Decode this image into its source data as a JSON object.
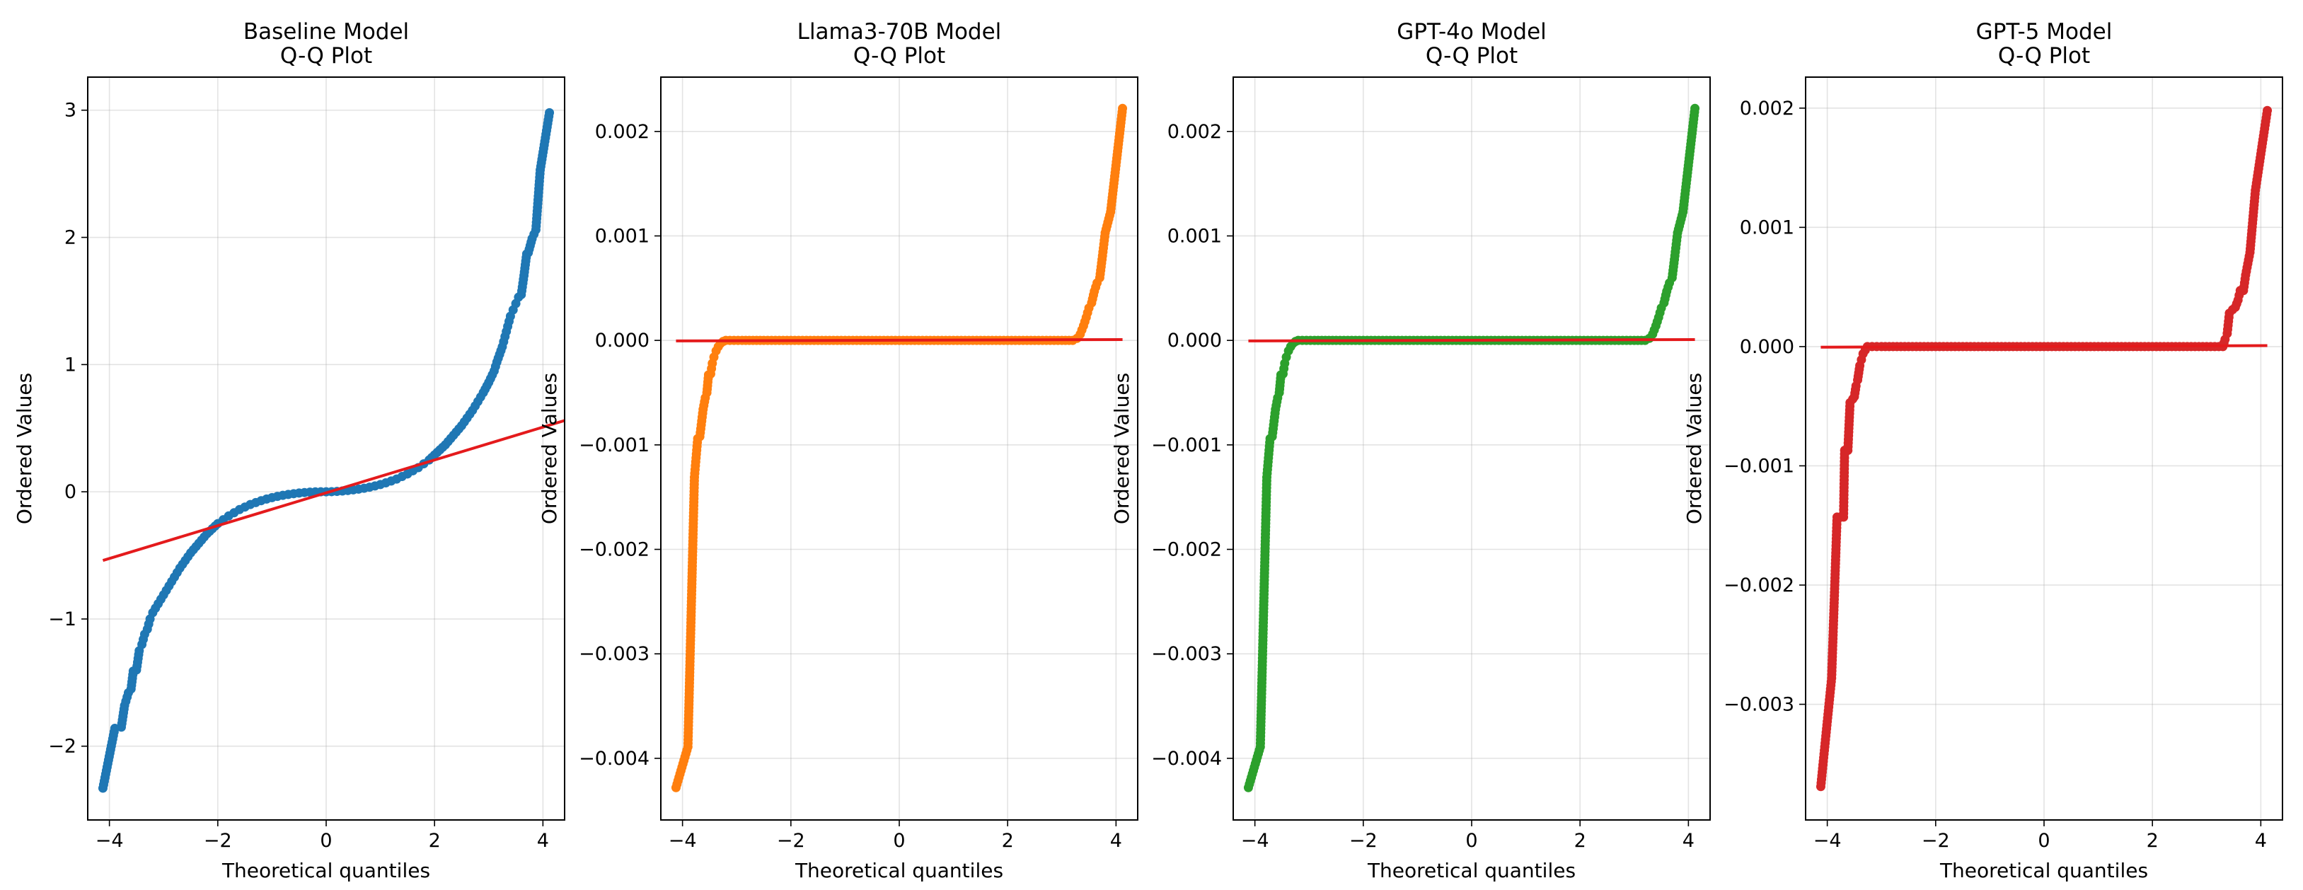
{
  "chart_data": [
    {
      "type": "scatter",
      "title_lines": [
        "Baseline Model",
        "Q-Q Plot"
      ],
      "xlabel": "Theoretical quantiles",
      "ylabel": "Ordered Values",
      "xlim": [
        -4.4,
        4.4
      ],
      "ylim": [
        -2.58,
        3.26
      ],
      "xticks": [
        -4,
        -2,
        0,
        2,
        4
      ],
      "xtick_labels": [
        "−4",
        "−2",
        "0",
        "2",
        "4"
      ],
      "yticks": [
        -2,
        -1,
        0,
        1,
        2,
        3
      ],
      "ytick_labels": [
        "−2",
        "−1",
        "0",
        "1",
        "2",
        "3"
      ],
      "grid": true,
      "point_color": "#1f77b4",
      "line_color": "#e41a1c",
      "fit_line": {
        "x": [
          -4.12,
          4.4
        ],
        "y": [
          -0.54,
          0.56
        ]
      },
      "points": [
        [
          -4.12,
          -2.33
        ],
        [
          -3.9,
          -1.86
        ],
        [
          -3.78,
          -1.85
        ],
        [
          -3.72,
          -1.68
        ],
        [
          -3.65,
          -1.58
        ],
        [
          -3.6,
          -1.55
        ],
        [
          -3.56,
          -1.41
        ],
        [
          -3.5,
          -1.4
        ],
        [
          -3.45,
          -1.25
        ],
        [
          -3.4,
          -1.2
        ],
        [
          -3.35,
          -1.12
        ],
        [
          -3.3,
          -1.08
        ],
        [
          -3.25,
          -1.0
        ],
        [
          -3.2,
          -0.95
        ],
        [
          -3.1,
          -0.88
        ],
        [
          -3.0,
          -0.81
        ],
        [
          -2.9,
          -0.74
        ],
        [
          -2.8,
          -0.67
        ],
        [
          -2.7,
          -0.6
        ],
        [
          -2.6,
          -0.54
        ],
        [
          -2.5,
          -0.48
        ],
        [
          -2.4,
          -0.43
        ],
        [
          -2.3,
          -0.38
        ],
        [
          -2.2,
          -0.33
        ],
        [
          -2.1,
          -0.29
        ],
        [
          -2.0,
          -0.25
        ],
        [
          -1.9,
          -0.22
        ],
        [
          -1.8,
          -0.19
        ],
        [
          -1.7,
          -0.165
        ],
        [
          -1.6,
          -0.14
        ],
        [
          -1.5,
          -0.12
        ],
        [
          -1.4,
          -0.1
        ],
        [
          -1.3,
          -0.085
        ],
        [
          -1.2,
          -0.07
        ],
        [
          -1.1,
          -0.057
        ],
        [
          -1.0,
          -0.046
        ],
        [
          -0.9,
          -0.036
        ],
        [
          -0.8,
          -0.028
        ],
        [
          -0.7,
          -0.021
        ],
        [
          -0.6,
          -0.015
        ],
        [
          -0.5,
          -0.01
        ],
        [
          -0.4,
          -0.006
        ],
        [
          -0.3,
          -0.003
        ],
        [
          -0.2,
          -0.001
        ],
        [
          -0.1,
          0.0
        ],
        [
          0.0,
          0.0
        ],
        [
          0.1,
          0.001
        ],
        [
          0.2,
          0.003
        ],
        [
          0.3,
          0.006
        ],
        [
          0.4,
          0.01
        ],
        [
          0.5,
          0.015
        ],
        [
          0.6,
          0.021
        ],
        [
          0.7,
          0.028
        ],
        [
          0.8,
          0.036
        ],
        [
          0.9,
          0.046
        ],
        [
          1.0,
          0.057
        ],
        [
          1.1,
          0.07
        ],
        [
          1.2,
          0.085
        ],
        [
          1.3,
          0.1
        ],
        [
          1.4,
          0.12
        ],
        [
          1.5,
          0.14
        ],
        [
          1.6,
          0.165
        ],
        [
          1.7,
          0.19
        ],
        [
          1.8,
          0.22
        ],
        [
          1.9,
          0.25
        ],
        [
          2.0,
          0.29
        ],
        [
          2.1,
          0.33
        ],
        [
          2.2,
          0.37
        ],
        [
          2.3,
          0.42
        ],
        [
          2.4,
          0.47
        ],
        [
          2.5,
          0.52
        ],
        [
          2.6,
          0.58
        ],
        [
          2.7,
          0.64
        ],
        [
          2.8,
          0.71
        ],
        [
          2.9,
          0.78
        ],
        [
          3.0,
          0.86
        ],
        [
          3.1,
          0.95
        ],
        [
          3.15,
          1.02
        ],
        [
          3.2,
          1.08
        ],
        [
          3.25,
          1.14
        ],
        [
          3.3,
          1.22
        ],
        [
          3.35,
          1.3
        ],
        [
          3.4,
          1.38
        ],
        [
          3.45,
          1.43
        ],
        [
          3.5,
          1.48
        ],
        [
          3.55,
          1.53
        ],
        [
          3.6,
          1.55
        ],
        [
          3.65,
          1.7
        ],
        [
          3.7,
          1.87
        ],
        [
          3.73,
          1.88
        ],
        [
          3.8,
          1.99
        ],
        [
          3.87,
          2.06
        ],
        [
          3.95,
          2.53
        ],
        [
          4.12,
          2.98
        ]
      ]
    },
    {
      "type": "scatter",
      "title_lines": [
        "Llama3-70B Model",
        "Q-Q Plot"
      ],
      "xlabel": "Theoretical quantiles",
      "ylabel": "Ordered Values",
      "xlim": [
        -4.4,
        4.4
      ],
      "ylim": [
        -0.00459,
        0.00252
      ],
      "xticks": [
        -4,
        -2,
        0,
        2,
        4
      ],
      "xtick_labels": [
        "−4",
        "−2",
        "0",
        "2",
        "4"
      ],
      "yticks": [
        -0.004,
        -0.003,
        -0.002,
        -0.001,
        0.0,
        0.001,
        0.002
      ],
      "ytick_labels": [
        "−0.004",
        "−0.003",
        "−0.002",
        "−0.001",
        "0.000",
        "0.001",
        "0.002"
      ],
      "grid": true,
      "point_color": "#ff7f0e",
      "line_color": "#e41a1c",
      "fit_line": {
        "x": [
          -4.12,
          4.12
        ],
        "y": [
          -5e-06,
          8e-06
        ]
      },
      "points": [
        [
          -4.12,
          -0.00428
        ],
        [
          -3.9,
          -0.00389
        ],
        [
          -3.78,
          -0.00131
        ],
        [
          -3.72,
          -0.00094
        ],
        [
          -3.68,
          -0.00092
        ],
        [
          -3.62,
          -0.00066
        ],
        [
          -3.58,
          -0.00055
        ],
        [
          -3.55,
          -0.0005
        ],
        [
          -3.52,
          -0.00033
        ],
        [
          -3.48,
          -0.00032
        ],
        [
          -3.45,
          -0.00022
        ],
        [
          -3.42,
          -0.00016
        ],
        [
          -3.38,
          -0.0001
        ],
        [
          -3.34,
          -6e-05
        ],
        [
          -3.3,
          -3e-05
        ],
        [
          -3.25,
          -1e-05
        ],
        [
          -3.2,
          0.0
        ],
        [
          -2.9,
          0.0
        ],
        [
          -2.5,
          0.0
        ],
        [
          -2.0,
          0.0
        ],
        [
          -1.5,
          0.0
        ],
        [
          -1.0,
          0.0
        ],
        [
          -0.5,
          0.0
        ],
        [
          0.0,
          0.0
        ],
        [
          0.5,
          0.0
        ],
        [
          1.0,
          0.0
        ],
        [
          1.5,
          0.0
        ],
        [
          2.0,
          0.0
        ],
        [
          2.5,
          0.0
        ],
        [
          3.0,
          0.0
        ],
        [
          3.2,
          0.0
        ],
        [
          3.28,
          2e-05
        ],
        [
          3.34,
          6e-05
        ],
        [
          3.4,
          0.00014
        ],
        [
          3.45,
          0.00022
        ],
        [
          3.5,
          0.00031
        ],
        [
          3.55,
          0.00036
        ],
        [
          3.6,
          0.00047
        ],
        [
          3.65,
          0.00055
        ],
        [
          3.7,
          0.0006
        ],
        [
          3.75,
          0.00081
        ],
        [
          3.8,
          0.00103
        ],
        [
          3.9,
          0.00123
        ],
        [
          4.12,
          0.00222
        ]
      ]
    },
    {
      "type": "scatter",
      "title_lines": [
        "GPT-4o Model",
        "Q-Q Plot"
      ],
      "xlabel": "Theoretical quantiles",
      "ylabel": "Ordered Values",
      "xlim": [
        -4.4,
        4.4
      ],
      "ylim": [
        -0.00459,
        0.00252
      ],
      "xticks": [
        -4,
        -2,
        0,
        2,
        4
      ],
      "xtick_labels": [
        "−4",
        "−2",
        "0",
        "2",
        "4"
      ],
      "yticks": [
        -0.004,
        -0.003,
        -0.002,
        -0.001,
        0.0,
        0.001,
        0.002
      ],
      "ytick_labels": [
        "−0.004",
        "−0.003",
        "−0.002",
        "−0.001",
        "0.000",
        "0.001",
        "0.002"
      ],
      "grid": true,
      "point_color": "#2ca02c",
      "line_color": "#e41a1c",
      "fit_line": {
        "x": [
          -4.12,
          4.12
        ],
        "y": [
          -5e-06,
          8e-06
        ]
      },
      "points": [
        [
          -4.12,
          -0.00428
        ],
        [
          -3.9,
          -0.00389
        ],
        [
          -3.78,
          -0.00131
        ],
        [
          -3.72,
          -0.00094
        ],
        [
          -3.68,
          -0.00092
        ],
        [
          -3.62,
          -0.00066
        ],
        [
          -3.58,
          -0.00055
        ],
        [
          -3.55,
          -0.0005
        ],
        [
          -3.52,
          -0.00033
        ],
        [
          -3.48,
          -0.00032
        ],
        [
          -3.45,
          -0.00022
        ],
        [
          -3.42,
          -0.00016
        ],
        [
          -3.38,
          -0.0001
        ],
        [
          -3.34,
          -6e-05
        ],
        [
          -3.3,
          -3e-05
        ],
        [
          -3.25,
          -1e-05
        ],
        [
          -3.2,
          0.0
        ],
        [
          -2.9,
          0.0
        ],
        [
          -2.5,
          0.0
        ],
        [
          -2.0,
          0.0
        ],
        [
          -1.5,
          0.0
        ],
        [
          -1.0,
          0.0
        ],
        [
          -0.5,
          0.0
        ],
        [
          0.0,
          0.0
        ],
        [
          0.5,
          0.0
        ],
        [
          1.0,
          0.0
        ],
        [
          1.5,
          0.0
        ],
        [
          2.0,
          0.0
        ],
        [
          2.5,
          0.0
        ],
        [
          3.0,
          0.0
        ],
        [
          3.2,
          0.0
        ],
        [
          3.28,
          2e-05
        ],
        [
          3.34,
          6e-05
        ],
        [
          3.4,
          0.00014
        ],
        [
          3.45,
          0.00022
        ],
        [
          3.5,
          0.00031
        ],
        [
          3.55,
          0.00036
        ],
        [
          3.6,
          0.00047
        ],
        [
          3.65,
          0.00055
        ],
        [
          3.7,
          0.0006
        ],
        [
          3.75,
          0.00081
        ],
        [
          3.8,
          0.00103
        ],
        [
          3.9,
          0.00123
        ],
        [
          4.12,
          0.00222
        ]
      ]
    },
    {
      "type": "scatter",
      "title_lines": [
        "GPT-5 Model",
        "Q-Q Plot"
      ],
      "xlabel": "Theoretical quantiles",
      "ylabel": "Ordered Values",
      "xlim": [
        -4.4,
        4.4
      ],
      "ylim": [
        -0.00397,
        0.00226
      ],
      "xticks": [
        -4,
        -2,
        0,
        2,
        4
      ],
      "xtick_labels": [
        "−4",
        "−2",
        "0",
        "2",
        "4"
      ],
      "yticks": [
        -0.003,
        -0.002,
        -0.001,
        0.0,
        0.001,
        0.002
      ],
      "ytick_labels": [
        "−0.003",
        "−0.002",
        "−0.001",
        "0.000",
        "0.001",
        "0.002"
      ],
      "grid": true,
      "point_color": "#d62728",
      "line_color": "#e41a1c",
      "fit_line": {
        "x": [
          -4.12,
          4.12
        ],
        "y": [
          -5e-06,
          8e-06
        ]
      },
      "points": [
        [
          -4.12,
          -0.00369
        ],
        [
          -3.92,
          -0.00278
        ],
        [
          -3.82,
          -0.00143
        ],
        [
          -3.75,
          -0.00143
        ],
        [
          -3.7,
          -0.00143
        ],
        [
          -3.68,
          -0.00087
        ],
        [
          -3.62,
          -0.00087
        ],
        [
          -3.58,
          -0.00047
        ],
        [
          -3.53,
          -0.00044
        ],
        [
          -3.5,
          -0.00042
        ],
        [
          -3.47,
          -0.00033
        ],
        [
          -3.44,
          -0.00028
        ],
        [
          -3.42,
          -0.00022
        ],
        [
          -3.4,
          -0.00016
        ],
        [
          -3.37,
          -0.00011
        ],
        [
          -3.34,
          -6e-05
        ],
        [
          -3.3,
          -3e-05
        ],
        [
          -3.26,
          0.0
        ],
        [
          -3.0,
          0.0
        ],
        [
          -2.5,
          0.0
        ],
        [
          -2.0,
          0.0
        ],
        [
          -1.5,
          0.0
        ],
        [
          -1.0,
          0.0
        ],
        [
          -0.5,
          0.0
        ],
        [
          0.0,
          0.0
        ],
        [
          0.5,
          0.0
        ],
        [
          1.0,
          0.0
        ],
        [
          1.5,
          0.0
        ],
        [
          2.0,
          0.0
        ],
        [
          2.5,
          0.0
        ],
        [
          3.0,
          0.0
        ],
        [
          3.3,
          0.0
        ],
        [
          3.34,
          6e-05
        ],
        [
          3.38,
          0.00011
        ],
        [
          3.42,
          0.00028
        ],
        [
          3.48,
          0.00031
        ],
        [
          3.53,
          0.00033
        ],
        [
          3.58,
          0.00039
        ],
        [
          3.62,
          0.00047
        ],
        [
          3.68,
          0.00047
        ],
        [
          3.72,
          0.0006
        ],
        [
          3.8,
          0.00079
        ],
        [
          3.9,
          0.00131
        ],
        [
          4.12,
          0.00198
        ]
      ]
    }
  ]
}
